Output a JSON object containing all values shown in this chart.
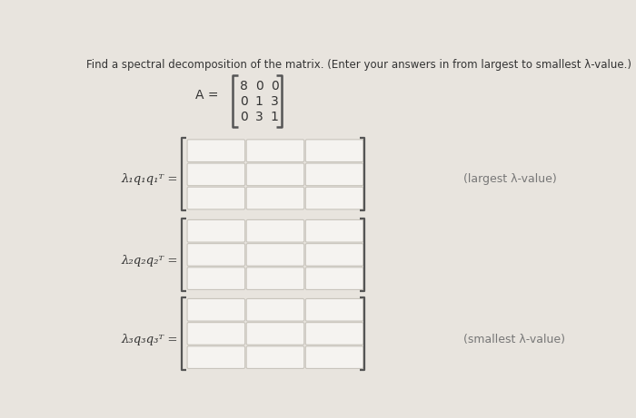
{
  "title": "Find a spectral decomposition of the matrix. (Enter your answers in from largest to smallest λ-value.)",
  "background_color": "#e8e4de",
  "matrix_label": "A =",
  "matrix": [
    [
      8,
      0,
      0
    ],
    [
      0,
      1,
      3
    ],
    [
      0,
      3,
      1
    ]
  ],
  "row1_label": "λ₁q₁q₁ᵀ =",
  "row2_label": "λ₂q₂q₂ᵀ =",
  "row3_label": "λ₃q₃q₃ᵀ =",
  "annotation1": "(largest λ-value)",
  "annotation2": "(smallest λ-value)",
  "cell_fill": "#f5f3f0",
  "cell_edge": "#c8c4bc",
  "bracket_color": "#555555",
  "text_color": "#333333",
  "annot_color": "#777777",
  "title_fontsize": 8.5,
  "label_fontsize": 9.5,
  "annot_fontsize": 9,
  "mat_fontsize": 10
}
